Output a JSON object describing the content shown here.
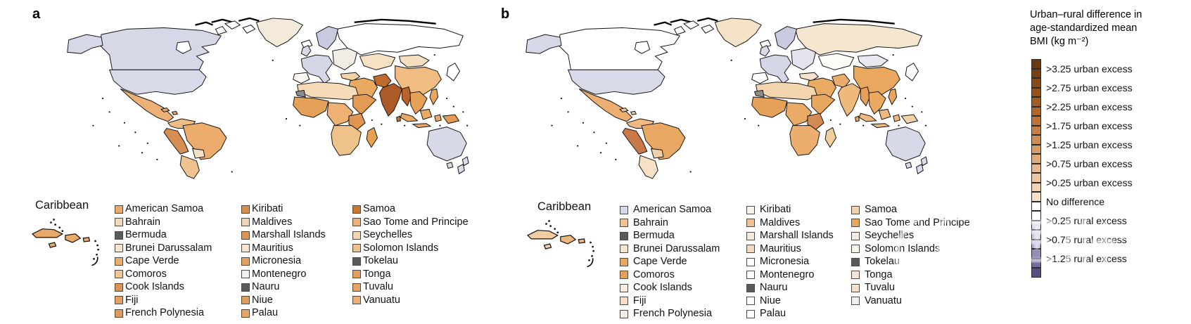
{
  "panels": [
    {
      "id": "a",
      "label": "a",
      "caribbean_title": "Caribbean",
      "islands": [
        {
          "name": "American Samoa",
          "color": "#E9A96B"
        },
        {
          "name": "Bahrain",
          "color": "#F4DABC"
        },
        {
          "name": "Bermuda",
          "color": "#5A5A5A"
        },
        {
          "name": "Brunei Darussalam",
          "color": "#F7E4CE"
        },
        {
          "name": "Cape Verde",
          "color": "#EAAC6E"
        },
        {
          "name": "Comoros",
          "color": "#F0C59A"
        },
        {
          "name": "Cook Islands",
          "color": "#DD9352"
        },
        {
          "name": "Fiji",
          "color": "#E4A161"
        },
        {
          "name": "French Polynesia",
          "color": "#E09A58"
        },
        {
          "name": "Kiribati",
          "color": "#D88E4A"
        },
        {
          "name": "Maldives",
          "color": "#F3D4B2"
        },
        {
          "name": "Marshall Islands",
          "color": "#DD9351"
        },
        {
          "name": "Mauritius",
          "color": "#F7E5D1"
        },
        {
          "name": "Micronesia",
          "color": "#E2A05E"
        },
        {
          "name": "Montenegro",
          "color": "#F5F0E9"
        },
        {
          "name": "Nauru",
          "color": "#5A5A5A"
        },
        {
          "name": "Niue",
          "color": "#E09C5A"
        },
        {
          "name": "Palau",
          "color": "#E4A765"
        },
        {
          "name": "Samoa",
          "color": "#C9762F"
        },
        {
          "name": "Sao Tome and Principe",
          "color": "#EBB279"
        },
        {
          "name": "Seychelles",
          "color": "#F3D5B4"
        },
        {
          "name": "Solomon Islands",
          "color": "#EFC08E"
        },
        {
          "name": "Tokelau",
          "color": "#5A5A5A"
        },
        {
          "name": "Tonga",
          "color": "#E2A05C"
        },
        {
          "name": "Tuvalu",
          "color": "#E3A463"
        },
        {
          "name": "Vanuatu",
          "color": "#EAB07A"
        }
      ]
    },
    {
      "id": "b",
      "label": "b",
      "caribbean_title": "Caribbean",
      "islands": [
        {
          "name": "American Samoa",
          "color": "#D7D8E9"
        },
        {
          "name": "Bahrain",
          "color": "#EFC28F"
        },
        {
          "name": "Bermuda",
          "color": "#5A5A5A"
        },
        {
          "name": "Brunei Darussalam",
          "color": "#F7E4CD"
        },
        {
          "name": "Cape Verde",
          "color": "#E6A760"
        },
        {
          "name": "Comoros",
          "color": "#E3A15A"
        },
        {
          "name": "Cook Islands",
          "color": "#F7ECDE"
        },
        {
          "name": "Fiji",
          "color": "#F5E0C6"
        },
        {
          "name": "French Polynesia",
          "color": "#F5EEE5"
        },
        {
          "name": "Kiribati",
          "color": "#F7F2EB"
        },
        {
          "name": "Maldives",
          "color": "#EFC191"
        },
        {
          "name": "Marshall Islands",
          "color": "#F6EBDC"
        },
        {
          "name": "Mauritius",
          "color": "#F3D9BB"
        },
        {
          "name": "Micronesia",
          "color": "#FEFEFE"
        },
        {
          "name": "Montenegro",
          "color": "#FEFEFE"
        },
        {
          "name": "Nauru",
          "color": "#5A5A5A"
        },
        {
          "name": "Niue",
          "color": "#FCFCFC"
        },
        {
          "name": "Palau",
          "color": "#FCFCFC"
        },
        {
          "name": "Samoa",
          "color": "#F2D1AB"
        },
        {
          "name": "Sao Tome and Principe",
          "color": "#E8A65F"
        },
        {
          "name": "Seychelles",
          "color": "#F4ECE2"
        },
        {
          "name": "Solomon Islands",
          "color": "#F8F5EF"
        },
        {
          "name": "Tokelau",
          "color": "#5A5A5A"
        },
        {
          "name": "Tonga",
          "color": "#F5E5D2"
        },
        {
          "name": "Tuvalu",
          "color": "#F3E0CA"
        },
        {
          "name": "Vanuatu",
          "color": "#EFEFF2"
        }
      ]
    }
  ],
  "legend": {
    "title_lines": [
      "Urban–rural difference in",
      "age-standardized mean",
      "BMI (kg m⁻²)"
    ],
    "entries": [
      ">3.25 urban excess",
      ">2.75 urban excess",
      ">2.25 urban excess",
      ">1.75 urban excess",
      ">1.25 urban excess",
      ">0.75 urban excess",
      ">0.25 urban excess",
      "No difference",
      ">0.25 rural excess",
      ">0.75 rural excess",
      ">1.25 rural excess"
    ],
    "cells": [
      "#6B3811",
      "#7A4014",
      "#884918",
      "#95521E",
      "#A25C25",
      "#AE672F",
      "#BA733C",
      "#C5804A",
      "#CF8D59",
      "#D89B69",
      "#E0A97A",
      "#E8B78C",
      "#EEC59F",
      "#F3D2B3",
      "#F7DFC7",
      "#FFFFFF",
      "#FFFFFF",
      "#DDDDEB",
      "#CACADF",
      "#AFAFD0",
      "#9090B9",
      "#6F6DA0",
      "#534F7E"
    ],
    "no_data_color": "#8C8C8C",
    "rural_map_color": "#D7D8E8"
  },
  "maps": {
    "a": {
      "greenland": "#F3EADA",
      "alaska": "#D6D8E8",
      "canada": "#D6D8E8",
      "hudson": "#FFFFFF",
      "usa": "#D9DAE9",
      "mexico": "#EDB077",
      "carib1": "#E8A763",
      "carib2": "#E8A763",
      "colombia": "#EFBC85",
      "peru": "#D78E52",
      "brazil": "#EBAC6E",
      "bolivia": "#F6E0C4",
      "argentina": "#F0C28D",
      "scandinavia": "#C8CADF",
      "uk": "#D9DAE9",
      "weurope": "#D5D6E6",
      "eeurope": "#F1ECE4",
      "iberia": "#FBF8F3",
      "iceland": "#FFFFFF",
      "arctic1": "#FFFFFF",
      "arctic2": "#FFFFFF",
      "arctic3": "#FFFFFF",
      "russia": "#FFFFFF",
      "kazakh": "#F6E1C3",
      "mongolia": "#F5DEC0",
      "china": "#F0BC82",
      "india": "#AB5A28",
      "pak": "#C06A2E",
      "bang": "#BB612A",
      "srilanka": "#C9762F",
      "mideast": "#E9A961",
      "turkey": "#F3D2A8",
      "nafrica": "#F5DBB7",
      "wsahara": "#8C8C8C",
      "wafrica": "#E6A158",
      "cafrica": "#EDB173",
      "horn": "#E29A55",
      "tanzania": "#E09551",
      "safrica": "#F0C28B",
      "madagascar": "#E7A150",
      "indochina": "#E6A159",
      "philippines": "#E8A65E",
      "borneo": "#EAA964",
      "sumatra": "#EAA964",
      "java": "#EAA964",
      "sulawesi": "#EAA964",
      "png": "#E39B54",
      "japan": "#FFFFFF",
      "australia": "#D7D8E8",
      "tasmania": "#D7D8E8",
      "nz1": "#DBDCEA",
      "nz2": "#DBDCEA"
    },
    "b": {
      "greenland": "#F5E3C8",
      "alaska": "#D6D8E8",
      "canada": "#FFFFFF",
      "hudson": "#FFFFFF",
      "usa": "#D9DAE9",
      "mexico": "#EDAE72",
      "carib1": "#F0C79B",
      "carib2": "#F0C79B",
      "colombia": "#EFBA82",
      "peru": "#C97947",
      "brazil": "#E8A763",
      "bolivia": "#F2CFA6",
      "argentina": "#F6E0C6",
      "scandinavia": "#C8CADF",
      "uk": "#D9DAE9",
      "weurope": "#D5D6E6",
      "eeurope": "#E4E4EE",
      "iberia": "#FFFFFF",
      "iceland": "#FFFFFF",
      "arctic1": "#FFFFFF",
      "arctic2": "#FFFFFF",
      "arctic3": "#FFFFFF",
      "russia": "#F5E6CF",
      "kazakh": "#FDFBF6",
      "mongolia": "#E9E9F1",
      "china": "#E9A75F",
      "india": "#EFB97C",
      "pak": "#EAAC6A",
      "bang": "#E59F58",
      "srilanka": "#E8A65E",
      "mideast": "#EAAA62",
      "turkey": "#F6E2C8",
      "nafrica": "#F3D6AF",
      "wsahara": "#8C8C8C",
      "wafrica": "#E6A158",
      "cafrica": "#EAAB66",
      "horn": "#E8A760",
      "tanzania": "#D28B55",
      "safrica": "#EBAE6F",
      "madagascar": "#F1CE9E",
      "indochina": "#E9A95F",
      "philippines": "#E8A65E",
      "borneo": "#EFB97E",
      "sumatra": "#EFB97E",
      "java": "#EFB97E",
      "sulawesi": "#EFB97E",
      "png": "#F2D2A8",
      "japan": "#FFFFFF",
      "australia": "#D7D8E8",
      "tasmania": "#D7D8E8",
      "nz1": "#DBDCEA",
      "nz2": "#DBDCEA"
    }
  },
  "insets": {
    "a": {
      "cuba": "#E9A968",
      "jamaica": "#E9A968",
      "hispaniola": "#E9A968",
      "puerto_rico": "#E9A968"
    },
    "b": {
      "cuba": "#F1CCA3",
      "jamaica": "#F1CCA3",
      "hispaniola": "#EDB67C",
      "puerto_rico": "#EDB67C"
    }
  },
  "watermark": {
    "group_text": "MEDIECO GROUP"
  }
}
